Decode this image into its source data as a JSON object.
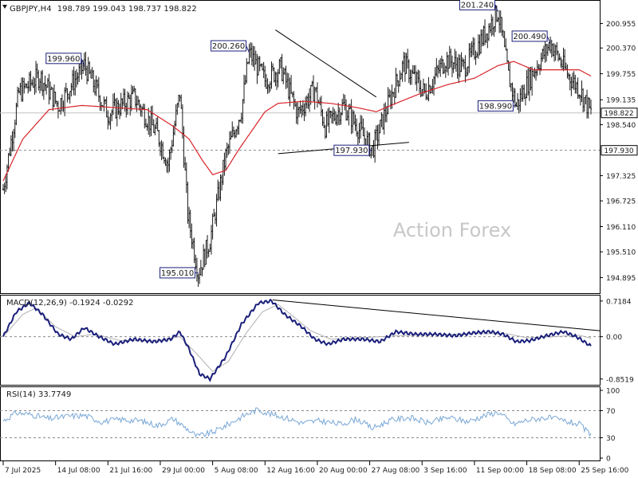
{
  "header": {
    "symbol": "GBPJPY,H4",
    "ohlc": "198.789 199.043 198.737 198.822"
  },
  "watermark": "Action Forex",
  "colors": {
    "bars": "#1a1a1a",
    "ma": "#d8242a",
    "macd": "#1a1f7a",
    "signal": "#b0b0b0",
    "rsi": "#79a7d6",
    "text": "#1a1a1a",
    "label_border": "#1a1f7a",
    "grid_dash": "#8a8a8a",
    "watermark": "#c7c7c7"
  },
  "chart_data": [
    {
      "type": "candlestick",
      "panel": "price",
      "ylim": [
        194.6,
        201.4
      ],
      "y_ticks": [
        "200.955",
        "200.370",
        "199.755",
        "199.135",
        "198.540",
        "197.325",
        "196.725",
        "196.110",
        "195.510",
        "194.895"
      ],
      "y_tick_values": [
        200.955,
        200.37,
        199.755,
        199.135,
        198.54,
        197.325,
        196.725,
        196.11,
        195.51,
        194.895
      ],
      "last_price": {
        "label": "198.822",
        "value": 198.822
      },
      "support_line": {
        "label": "197.930",
        "value": 197.93
      },
      "x_ticks": [
        "7 Jul 2025",
        "14 Jul 08:00",
        "21 Jul 16:00",
        "29 Jul 00:00",
        "5 Aug 08:00",
        "12 Aug 16:00",
        "20 Aug 00:00",
        "27 Aug 08:00",
        "3 Sep 16:00",
        "11 Sep 00:00",
        "18 Sep 08:00",
        "25 Sep 16:00"
      ],
      "x_tick_index": [
        0,
        40,
        80,
        120,
        160,
        200,
        240,
        280,
        320,
        360,
        400,
        440
      ],
      "bar_count": 450,
      "price_path": [
        [
          0,
          197.0
        ],
        [
          12,
          199.3
        ],
        [
          28,
          199.7
        ],
        [
          42,
          199.0
        ],
        [
          62,
          199.96
        ],
        [
          80,
          198.8
        ],
        [
          100,
          199.2
        ],
        [
          118,
          198.3
        ],
        [
          126,
          197.6
        ],
        [
          135,
          199.3
        ],
        [
          141,
          196.4
        ],
        [
          149,
          195.01
        ],
        [
          158,
          195.8
        ],
        [
          170,
          197.8
        ],
        [
          182,
          198.9
        ],
        [
          188,
          200.26
        ],
        [
          200,
          199.6
        ],
        [
          212,
          199.9
        ],
        [
          225,
          198.8
        ],
        [
          238,
          199.4
        ],
        [
          246,
          198.5
        ],
        [
          260,
          199.0
        ],
        [
          282,
          197.93
        ],
        [
          296,
          199.2
        ],
        [
          306,
          200.0
        ],
        [
          322,
          199.3
        ],
        [
          338,
          200.1
        ],
        [
          352,
          199.9
        ],
        [
          366,
          200.6
        ],
        [
          378,
          201.24
        ],
        [
          386,
          199.7
        ],
        [
          392,
          198.99
        ],
        [
          405,
          199.8
        ],
        [
          418,
          200.49
        ],
        [
          432,
          199.7
        ],
        [
          440,
          199.4
        ],
        [
          449,
          198.822
        ]
      ],
      "ma_path": [
        [
          0,
          197.2
        ],
        [
          15,
          198.2
        ],
        [
          35,
          198.9
        ],
        [
          60,
          199.0
        ],
        [
          85,
          198.95
        ],
        [
          110,
          198.9
        ],
        [
          130,
          198.5
        ],
        [
          142,
          198.2
        ],
        [
          152,
          197.7
        ],
        [
          160,
          197.35
        ],
        [
          170,
          197.45
        ],
        [
          180,
          197.95
        ],
        [
          190,
          198.4
        ],
        [
          200,
          198.85
        ],
        [
          210,
          199.05
        ],
        [
          230,
          199.1
        ],
        [
          250,
          199.05
        ],
        [
          270,
          198.95
        ],
        [
          285,
          198.85
        ],
        [
          300,
          199.05
        ],
        [
          320,
          199.3
        ],
        [
          340,
          199.5
        ],
        [
          360,
          199.65
        ],
        [
          378,
          199.95
        ],
        [
          390,
          200.05
        ],
        [
          405,
          199.85
        ],
        [
          420,
          199.85
        ],
        [
          440,
          199.85
        ],
        [
          449,
          199.7
        ]
      ],
      "labels": [
        {
          "text": "199.960",
          "index": 62,
          "value": 199.96,
          "side": "left"
        },
        {
          "text": "195.010",
          "index": 149,
          "value": 195.01,
          "side": "left"
        },
        {
          "text": "200.260",
          "index": 188,
          "value": 200.26,
          "side": "left"
        },
        {
          "text": "197.930",
          "index": 282,
          "value": 197.93,
          "side": "left"
        },
        {
          "text": "201.240",
          "index": 378,
          "value": 201.24,
          "side": "left"
        },
        {
          "text": "198.990",
          "index": 392,
          "value": 198.99,
          "side": "left"
        },
        {
          "text": "200.490",
          "index": 418,
          "value": 200.49,
          "side": "left"
        }
      ],
      "trendlines": [
        {
          "from": [
            208,
            200.8
          ],
          "to": [
            285,
            199.2
          ]
        },
        {
          "from": [
            210,
            197.85
          ],
          "to": [
            310,
            198.12
          ]
        }
      ]
    },
    {
      "type": "line",
      "panel": "macd",
      "title": "MACD(12,26,9) -0.1924 -0.0292",
      "ylim": [
        -0.92,
        0.78
      ],
      "y_ticks": [
        "0.7184",
        "0.00",
        "-0.8519"
      ],
      "y_tick_values": [
        0.7184,
        0.0,
        -0.8519
      ],
      "macd_path": [
        [
          0,
          0.0
        ],
        [
          10,
          0.5
        ],
        [
          20,
          0.68
        ],
        [
          30,
          0.45
        ],
        [
          42,
          0.05
        ],
        [
          52,
          -0.05
        ],
        [
          62,
          0.18
        ],
        [
          72,
          0.02
        ],
        [
          85,
          -0.15
        ],
        [
          100,
          -0.05
        ],
        [
          115,
          -0.1
        ],
        [
          128,
          -0.05
        ],
        [
          135,
          0.1
        ],
        [
          142,
          -0.25
        ],
        [
          150,
          -0.75
        ],
        [
          158,
          -0.85
        ],
        [
          170,
          -0.4
        ],
        [
          182,
          0.25
        ],
        [
          195,
          0.68
        ],
        [
          205,
          0.72
        ],
        [
          215,
          0.45
        ],
        [
          228,
          0.2
        ],
        [
          238,
          -0.05
        ],
        [
          248,
          -0.15
        ],
        [
          260,
          -0.05
        ],
        [
          275,
          -0.05
        ],
        [
          288,
          -0.1
        ],
        [
          300,
          0.1
        ],
        [
          315,
          0.05
        ],
        [
          330,
          0.05
        ],
        [
          345,
          0.02
        ],
        [
          360,
          0.08
        ],
        [
          372,
          0.1
        ],
        [
          382,
          0.05
        ],
        [
          392,
          -0.1
        ],
        [
          402,
          -0.08
        ],
        [
          415,
          0.02
        ],
        [
          428,
          0.1
        ],
        [
          438,
          0.0
        ],
        [
          449,
          -0.19
        ]
      ],
      "signal_path": [
        [
          0,
          0.0
        ],
        [
          15,
          0.45
        ],
        [
          25,
          0.58
        ],
        [
          40,
          0.2
        ],
        [
          55,
          0.0
        ],
        [
          70,
          0.05
        ],
        [
          90,
          -0.08
        ],
        [
          115,
          -0.08
        ],
        [
          135,
          0.0
        ],
        [
          148,
          -0.35
        ],
        [
          160,
          -0.7
        ],
        [
          172,
          -0.5
        ],
        [
          185,
          0.05
        ],
        [
          198,
          0.5
        ],
        [
          210,
          0.65
        ],
        [
          222,
          0.4
        ],
        [
          235,
          0.12
        ],
        [
          250,
          -0.05
        ],
        [
          275,
          -0.02
        ],
        [
          300,
          0.02
        ],
        [
          330,
          0.04
        ],
        [
          360,
          0.06
        ],
        [
          385,
          0.06
        ],
        [
          400,
          -0.02
        ],
        [
          420,
          0.0
        ],
        [
          440,
          0.03
        ],
        [
          449,
          -0.03
        ]
      ],
      "trendline": {
        "from": [
          206,
          0.74
        ],
        "to": [
          449,
          0.12
        ]
      }
    },
    {
      "type": "line",
      "panel": "rsi",
      "title": "RSI(14) 33.7749",
      "ylim": [
        0,
        100
      ],
      "y_ticks": [
        "100",
        "70",
        "30",
        "0"
      ],
      "y_tick_values": [
        100,
        70,
        30,
        0
      ],
      "rsi_path": [
        [
          0,
          55
        ],
        [
          10,
          67
        ],
        [
          22,
          64
        ],
        [
          35,
          58
        ],
        [
          50,
          62
        ],
        [
          62,
          63
        ],
        [
          75,
          54
        ],
        [
          90,
          57
        ],
        [
          105,
          55
        ],
        [
          118,
          48
        ],
        [
          130,
          58
        ],
        [
          140,
          44
        ],
        [
          148,
          32
        ],
        [
          160,
          38
        ],
        [
          172,
          50
        ],
        [
          185,
          64
        ],
        [
          195,
          72
        ],
        [
          202,
          66
        ],
        [
          215,
          60
        ],
        [
          228,
          52
        ],
        [
          242,
          55
        ],
        [
          258,
          50
        ],
        [
          270,
          58
        ],
        [
          282,
          44
        ],
        [
          296,
          56
        ],
        [
          310,
          60
        ],
        [
          325,
          52
        ],
        [
          340,
          60
        ],
        [
          355,
          54
        ],
        [
          368,
          63
        ],
        [
          378,
          68
        ],
        [
          390,
          50
        ],
        [
          400,
          56
        ],
        [
          415,
          60
        ],
        [
          428,
          55
        ],
        [
          440,
          50
        ],
        [
          449,
          33.77
        ]
      ]
    }
  ]
}
